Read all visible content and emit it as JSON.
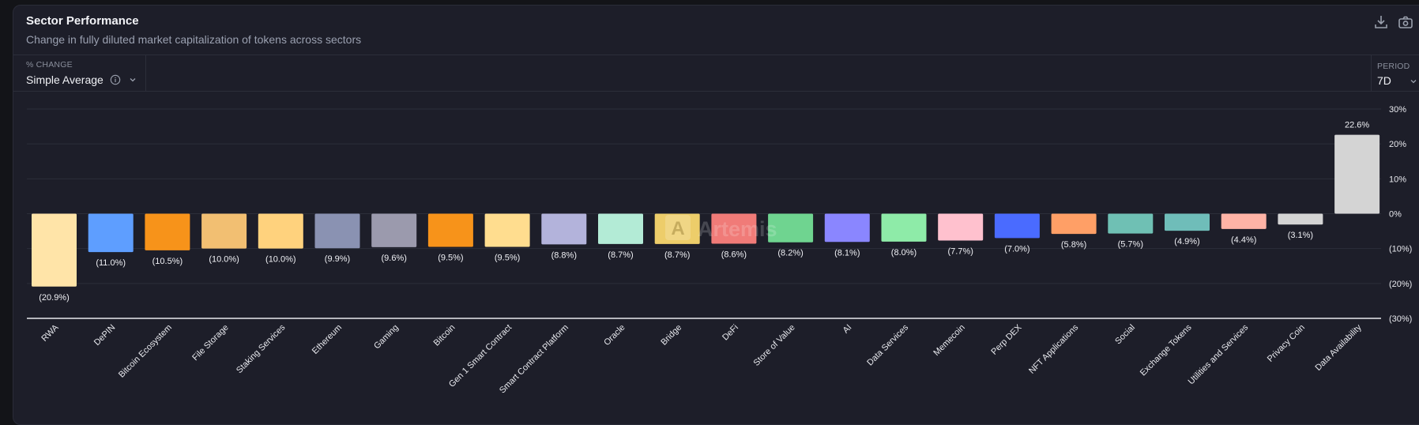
{
  "header": {
    "title": "Sector Performance",
    "subtitle": "Change in fully diluted market capitalization of tokens across sectors",
    "actions": [
      "download-icon",
      "camera-icon"
    ]
  },
  "controls": {
    "change": {
      "label": "% CHANGE",
      "value": "Simple Average",
      "icons": [
        "info-icon",
        "chevron-down-icon"
      ]
    },
    "period": {
      "label": "PERIOD",
      "value": "7D",
      "icons": [
        "chevron-down-icon"
      ]
    }
  },
  "watermark": "Artemis",
  "chart_data": {
    "type": "bar",
    "categories": [
      "RWA",
      "DePIN",
      "Bitcoin Ecosystem",
      "File Storage",
      "Staking Services",
      "Ethereum",
      "Gaming",
      "Bitcoin",
      "Gen 1 Smart Contract",
      "Smart Contract Platform",
      "Oracle",
      "Bridge",
      "DeFi",
      "Store of Value",
      "AI",
      "Data Services",
      "Memecoin",
      "Perp DEX",
      "NFT Applications",
      "Social",
      "Exchange Tokens",
      "Utilities and Services",
      "Privacy Coin",
      "Data Availability"
    ],
    "values": [
      -20.9,
      -11.0,
      -10.5,
      -10.0,
      -10.0,
      -9.9,
      -9.6,
      -9.5,
      -9.5,
      -8.8,
      -8.7,
      -8.7,
      -8.6,
      -8.2,
      -8.1,
      -8.0,
      -7.7,
      -7.0,
      -5.8,
      -5.7,
      -4.9,
      -4.4,
      -3.1,
      22.6
    ],
    "data_labels": [
      "(20.9%)",
      "(11.0%)",
      "(10.5%)",
      "(10.0%)",
      "(10.0%)",
      "(9.9%)",
      "(9.6%)",
      "(9.5%)",
      "(9.5%)",
      "(8.8%)",
      "(8.7%)",
      "(8.7%)",
      "(8.6%)",
      "(8.2%)",
      "(8.1%)",
      "(8.0%)",
      "(7.7%)",
      "(7.0%)",
      "(5.8%)",
      "(5.7%)",
      "(4.9%)",
      "(4.4%)",
      "(3.1%)",
      "22.6%"
    ],
    "colors": [
      "#FFE4A8",
      "#5E9EFF",
      "#F7931A",
      "#F2BF72",
      "#FFD27D",
      "#8A92B2",
      "#9B9AAD",
      "#F7931A",
      "#FFDD8F",
      "#B3B3DB",
      "#B3EBD6",
      "#EDCD6A",
      "#F07B78",
      "#6FD490",
      "#8A86FF",
      "#8EEBA8",
      "#FFC1CE",
      "#4A6BFF",
      "#FF9F66",
      "#6FC0B4",
      "#6FBDB9",
      "#FFB3A6",
      "#D4D4D4",
      "#D4D4D4"
    ],
    "yticks": [
      30,
      20,
      10,
      0,
      -10,
      -20,
      -30
    ],
    "ytick_labels": [
      "30%",
      "20%",
      "10%",
      "0%",
      "(10%)",
      "(20%)",
      "(30%)"
    ],
    "ylim": [
      -30,
      30
    ],
    "grid": true,
    "yaxis_side": "right",
    "xlabel": "",
    "ylabel": "",
    "title": ""
  }
}
